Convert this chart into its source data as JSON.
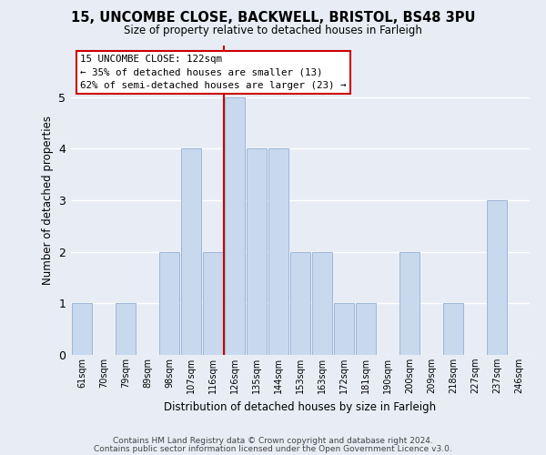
{
  "title": "15, UNCOMBE CLOSE, BACKWELL, BRISTOL, BS48 3PU",
  "subtitle": "Size of property relative to detached houses in Farleigh",
  "xlabel": "Distribution of detached houses by size in Farleigh",
  "ylabel": "Number of detached properties",
  "categories": [
    "61sqm",
    "70sqm",
    "79sqm",
    "89sqm",
    "98sqm",
    "107sqm",
    "116sqm",
    "126sqm",
    "135sqm",
    "144sqm",
    "153sqm",
    "163sqm",
    "172sqm",
    "181sqm",
    "190sqm",
    "200sqm",
    "209sqm",
    "218sqm",
    "227sqm",
    "237sqm",
    "246sqm"
  ],
  "values": [
    1,
    0,
    1,
    0,
    2,
    4,
    2,
    5,
    4,
    4,
    2,
    2,
    1,
    1,
    0,
    2,
    0,
    1,
    0,
    3,
    0
  ],
  "bar_color": "#c8d8ed",
  "bar_edge_color": "#93b0d4",
  "vline_color": "#cc0000",
  "vline_pos": 6.5,
  "annotation_line1": "15 UNCOMBE CLOSE: 122sqm",
  "annotation_line2": "← 35% of detached houses are smaller (13)",
  "annotation_line3": "62% of semi-detached houses are larger (23) →",
  "annotation_box_facecolor": "#ffffff",
  "annotation_box_edgecolor": "#cc0000",
  "ylim": [
    0,
    6
  ],
  "yticks": [
    0,
    1,
    2,
    3,
    4,
    5
  ],
  "background_color": "#e8edf5",
  "grid_color": "#ffffff",
  "footer1": "Contains HM Land Registry data © Crown copyright and database right 2024.",
  "footer2": "Contains public sector information licensed under the Open Government Licence v3.0."
}
